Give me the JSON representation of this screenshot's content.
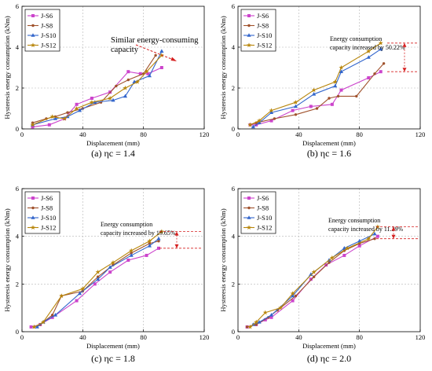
{
  "chart_data": [
    {
      "type": "line",
      "caption": "(a) ηc = 1.4",
      "xlabel": "Displacement (mm)",
      "ylabel": "Hysteresis energy consumption (kNm)",
      "xlim": [
        0,
        120
      ],
      "ylim": [
        0,
        6
      ],
      "xticks": [
        0,
        40,
        80,
        120
      ],
      "yticks": [
        0,
        2,
        4,
        6
      ],
      "grid": true,
      "legend_position": "top-left",
      "annotations": [
        {
          "text_lines": [
            "Similar energy-consuming",
            "capacity"
          ],
          "arrow": "red dashed, pointing to curve ends"
        }
      ],
      "series": [
        {
          "name": "J-S6",
          "color": "#cc44cc",
          "marker": "square",
          "x": [
            7,
            18,
            28,
            36,
            46,
            58,
            70,
            78,
            83,
            92
          ],
          "y": [
            0.1,
            0.2,
            0.5,
            1.2,
            1.5,
            1.8,
            2.8,
            2.7,
            2.7,
            3.0
          ]
        },
        {
          "name": "J-S8",
          "color": "#a0522d",
          "marker": "dot",
          "x": [
            7,
            16,
            22,
            30,
            40,
            52,
            62,
            70,
            80,
            88
          ],
          "y": [
            0.3,
            0.5,
            0.6,
            0.8,
            1.0,
            1.3,
            2.1,
            2.4,
            2.7,
            3.6
          ]
        },
        {
          "name": "J-S10",
          "color": "#3366cc",
          "marker": "triangle",
          "x": [
            7,
            22,
            30,
            38,
            48,
            60,
            68,
            74,
            84,
            92
          ],
          "y": [
            0.2,
            0.5,
            0.6,
            0.9,
            1.3,
            1.4,
            1.6,
            2.3,
            2.6,
            3.8
          ]
        },
        {
          "name": "J-S12",
          "color": "#b8860b",
          "marker": "star",
          "x": [
            7,
            20,
            28,
            36,
            46,
            58,
            68,
            76,
            82,
            92
          ],
          "y": [
            0.2,
            0.6,
            0.5,
            1.0,
            1.3,
            1.5,
            2.0,
            2.3,
            2.8,
            3.6
          ]
        }
      ]
    },
    {
      "type": "line",
      "caption": "(b) ηc = 1.6",
      "xlabel": "Displacement (mm)",
      "ylabel": "Hysteresis energy consumption (kNm)",
      "xlim": [
        0,
        120
      ],
      "ylim": [
        0,
        6
      ],
      "xticks": [
        0,
        40,
        80,
        120
      ],
      "yticks": [
        0,
        2,
        4,
        6
      ],
      "grid": true,
      "legend_position": "top-left",
      "annotations": [
        {
          "text_lines": [
            "Energy consumption",
            "capacity increased by 50.22%"
          ],
          "bracket": [
            2.8,
            4.2
          ]
        }
      ],
      "series": [
        {
          "name": "J-S6",
          "color": "#cc44cc",
          "marker": "square",
          "x": [
            8,
            12,
            22,
            36,
            48,
            62,
            68,
            86,
            94
          ],
          "y": [
            0.2,
            0.2,
            0.4,
            0.9,
            1.1,
            1.2,
            1.9,
            2.5,
            2.8
          ]
        },
        {
          "name": "J-S8",
          "color": "#a0522d",
          "marker": "dot",
          "x": [
            8,
            12,
            24,
            38,
            52,
            60,
            66,
            78,
            90,
            96
          ],
          "y": [
            0.2,
            0.3,
            0.5,
            0.7,
            1.0,
            1.5,
            1.6,
            1.6,
            2.7,
            3.2
          ]
        },
        {
          "name": "J-S10",
          "color": "#3366cc",
          "marker": "triangle",
          "x": [
            10,
            14,
            22,
            38,
            50,
            64,
            68,
            86,
            94
          ],
          "y": [
            0.1,
            0.3,
            0.8,
            1.1,
            1.7,
            2.1,
            2.8,
            3.5,
            3.9
          ]
        },
        {
          "name": "J-S12",
          "color": "#b8860b",
          "marker": "star",
          "x": [
            8,
            14,
            22,
            38,
            50,
            64,
            68,
            86,
            94
          ],
          "y": [
            0.2,
            0.4,
            0.9,
            1.3,
            1.9,
            2.3,
            3.0,
            3.8,
            4.2
          ]
        }
      ]
    },
    {
      "type": "line",
      "caption": "(c) ηc = 1.8",
      "xlabel": "Displacement (mm)",
      "ylabel": "Hysteresis energy consumption (kNm)",
      "xlim": [
        0,
        120
      ],
      "ylim": [
        0,
        6
      ],
      "xticks": [
        0,
        40,
        80,
        120
      ],
      "yticks": [
        0,
        2,
        4,
        6
      ],
      "grid": true,
      "legend_position": "top-left",
      "annotations": [
        {
          "text_lines": [
            "Energy consumption",
            "capacity increased by 19.65%"
          ],
          "bracket": [
            3.5,
            4.2
          ]
        }
      ],
      "series": [
        {
          "name": "J-S6",
          "color": "#cc44cc",
          "marker": "square",
          "x": [
            6,
            12,
            20,
            36,
            48,
            58,
            70,
            82,
            90
          ],
          "y": [
            0.2,
            0.3,
            0.6,
            1.3,
            2.0,
            2.5,
            3.0,
            3.2,
            3.5
          ]
        },
        {
          "name": "J-S8",
          "color": "#a0522d",
          "marker": "dot",
          "x": [
            8,
            12,
            20,
            26,
            40,
            50,
            60,
            72,
            84,
            90
          ],
          "y": [
            0.2,
            0.3,
            0.7,
            1.5,
            1.7,
            2.3,
            2.8,
            3.3,
            3.7,
            3.8
          ]
        },
        {
          "name": "J-S10",
          "color": "#3366cc",
          "marker": "triangle",
          "x": [
            10,
            14,
            22,
            38,
            50,
            58,
            72,
            84,
            90
          ],
          "y": [
            0.2,
            0.4,
            0.7,
            1.6,
            2.2,
            2.7,
            3.2,
            3.6,
            3.9
          ]
        },
        {
          "name": "J-S12",
          "color": "#b8860b",
          "marker": "star",
          "x": [
            8,
            14,
            26,
            40,
            50,
            60,
            72,
            84,
            92
          ],
          "y": [
            0.2,
            0.4,
            1.5,
            1.8,
            2.5,
            2.9,
            3.4,
            3.8,
            4.2
          ]
        }
      ]
    },
    {
      "type": "line",
      "caption": "(d) ηc = 2.0",
      "xlabel": "Displacement (mm)",
      "ylabel": "Hysteresis energy consumption (kNm)",
      "xlim": [
        0,
        120
      ],
      "ylim": [
        0,
        6
      ],
      "xticks": [
        0,
        40,
        80,
        120
      ],
      "yticks": [
        0,
        2,
        4,
        6
      ],
      "grid": true,
      "legend_position": "top-left",
      "annotations": [
        {
          "text_lines": [
            "Energy consumption",
            "capacity increased by 11.39%"
          ],
          "bracket": [
            3.9,
            4.4
          ]
        }
      ],
      "series": [
        {
          "name": "J-S6",
          "color": "#cc44cc",
          "marker": "square",
          "x": [
            6,
            12,
            18,
            22,
            36,
            48,
            58,
            70,
            80,
            92
          ],
          "y": [
            0.2,
            0.3,
            0.5,
            0.6,
            1.3,
            2.2,
            2.8,
            3.2,
            3.6,
            4.0
          ]
        },
        {
          "name": "J-S8",
          "color": "#a0522d",
          "marker": "dot",
          "x": [
            6,
            12,
            20,
            26,
            38,
            50,
            60,
            70,
            80,
            90
          ],
          "y": [
            0.2,
            0.3,
            0.6,
            0.9,
            1.5,
            2.3,
            2.9,
            3.4,
            3.7,
            3.9
          ]
        },
        {
          "name": "J-S10",
          "color": "#3366cc",
          "marker": "triangle",
          "x": [
            10,
            14,
            22,
            36,
            48,
            60,
            70,
            80,
            90
          ],
          "y": [
            0.3,
            0.4,
            0.7,
            1.5,
            2.4,
            3.0,
            3.5,
            3.8,
            4.1
          ]
        },
        {
          "name": "J-S12",
          "color": "#b8860b",
          "marker": "star",
          "x": [
            8,
            12,
            18,
            28,
            36,
            50,
            62,
            72,
            86,
            92
          ],
          "y": [
            0.2,
            0.4,
            0.8,
            1.0,
            1.6,
            2.5,
            3.1,
            3.5,
            3.9,
            4.4
          ]
        }
      ]
    }
  ]
}
